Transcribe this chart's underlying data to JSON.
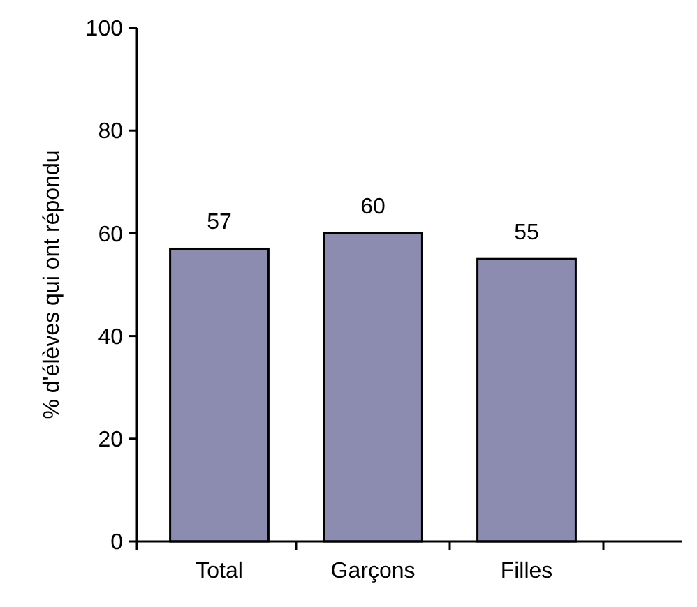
{
  "chart_data": {
    "type": "bar",
    "ylabel": "% d'élèves qui ont répondu",
    "categories": [
      "Total",
      "Garçons",
      "Filles"
    ],
    "values": [
      57,
      60,
      55
    ],
    "color": "#8c8cb0",
    "ylim": [
      0,
      100
    ],
    "yticks": [
      0,
      20,
      40,
      60,
      80,
      100
    ],
    "data_labels": true,
    "grid": false
  }
}
